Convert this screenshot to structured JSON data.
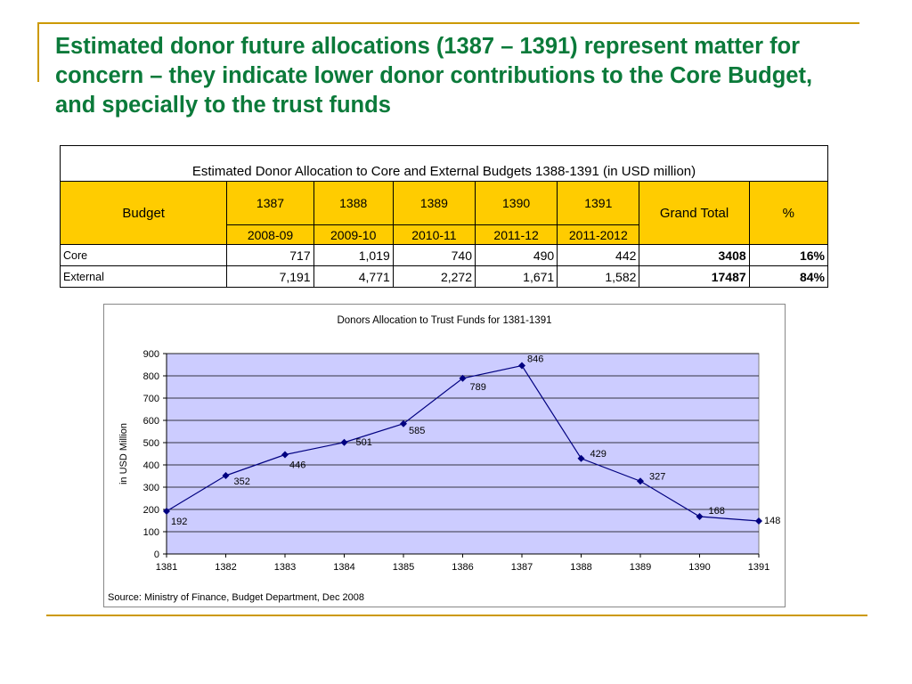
{
  "slide": {
    "title": "Estimated donor future allocations (1387 – 1391) represent matter for concern – they indicate lower donor contributions to the Core Budget, and specially to the trust funds"
  },
  "table": {
    "caption": "Estimated Donor Allocation to Core and External Budgets 1388-1391 (in USD million)",
    "budget_header": "Budget",
    "grand_total_header": "Grand Total",
    "percent_header": "%",
    "years": [
      "1387",
      "1388",
      "1389",
      "1390",
      "1391"
    ],
    "fiscal_years": [
      "2008-09",
      "2009-10",
      "2010-11",
      "2011-12",
      "2011-2012"
    ],
    "rows": [
      {
        "label": "Core",
        "values": [
          "717",
          "1,019",
          "740",
          "490",
          "442"
        ],
        "total": "3408",
        "percent": "16%"
      },
      {
        "label": "External",
        "values": [
          "7,191",
          "4,771",
          "2,272",
          "1,671",
          "1,582"
        ],
        "total": "17487",
        "percent": "84%"
      }
    ]
  },
  "chart_data": {
    "type": "line",
    "title": "Donors Allocation to Trust Funds  for 1381-1391",
    "ylabel": "in USD Million",
    "xlabel": "",
    "x": [
      "1381",
      "1382",
      "1383",
      "1384",
      "1385",
      "1386",
      "1387",
      "1388",
      "1389",
      "1390",
      "1391"
    ],
    "y": [
      192,
      352,
      446,
      501,
      585,
      789,
      846,
      429,
      327,
      168,
      148
    ],
    "ylim": [
      0,
      900
    ],
    "yticks": [
      0,
      100,
      200,
      300,
      400,
      500,
      600,
      700,
      800,
      900
    ],
    "grid": true,
    "legend": "none",
    "source": "Source: Ministry of Finance, Budget Department, Dec 2008",
    "colors": {
      "plot_background": "#ccccff",
      "line": "#000080",
      "marker": "#000080"
    }
  }
}
